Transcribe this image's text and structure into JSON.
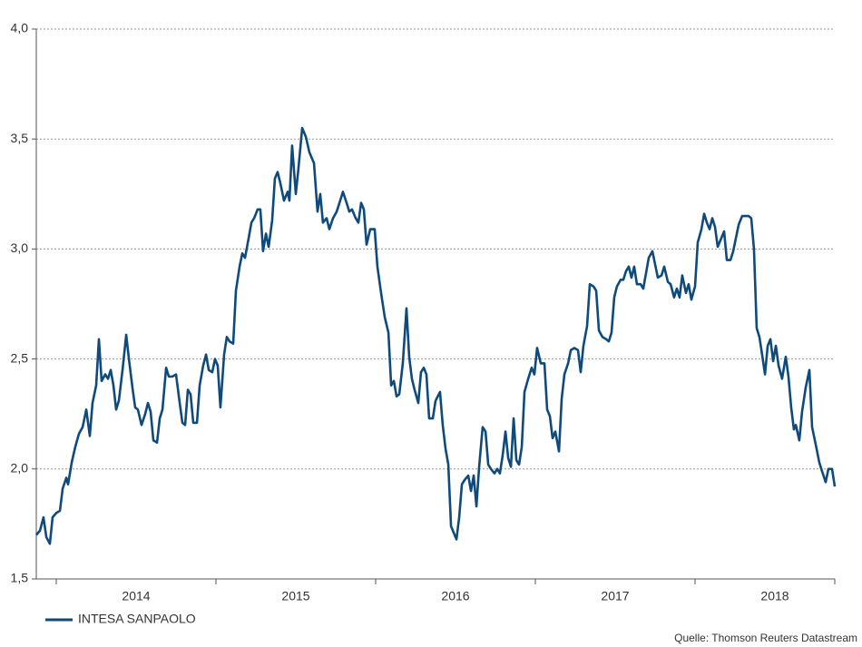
{
  "chart_data": {
    "type": "line",
    "source": "Quelle: Thomson Reuters Datastream",
    "legend": "bottom left",
    "grid": true,
    "xlim": [
      2013.875,
      2018.875
    ],
    "xticks": [
      2014,
      2015,
      2016,
      2017,
      2018
    ],
    "ylim": [
      1.5,
      4.0
    ],
    "yticks": [
      {
        "value": 1.5,
        "label": "1,5"
      },
      {
        "value": 2.0,
        "label": "2,0"
      },
      {
        "value": 2.5,
        "label": "2,5"
      },
      {
        "value": 3.0,
        "label": "3,0"
      },
      {
        "value": 3.5,
        "label": "3,5"
      },
      {
        "value": 4.0,
        "label": "4,0"
      }
    ],
    "x": [
      2013.875,
      2013.898,
      2013.92,
      2013.938,
      2013.96,
      2013.977,
      2014.0,
      2014.023,
      2014.04,
      2014.063,
      2014.074,
      2014.097,
      2014.119,
      2014.142,
      2014.165,
      2014.188,
      2014.21,
      2014.227,
      2014.25,
      2014.267,
      2014.284,
      2014.307,
      2014.324,
      2014.341,
      2014.358,
      2014.375,
      2014.392,
      2014.415,
      2014.438,
      2014.455,
      2014.477,
      2014.494,
      2014.511,
      2014.534,
      2014.557,
      2014.574,
      2014.591,
      2014.608,
      2014.631,
      2014.648,
      2014.665,
      2014.688,
      2014.705,
      2014.727,
      2014.75,
      2014.773,
      2014.79,
      2014.807,
      2014.824,
      2014.841,
      2014.858,
      2014.881,
      2014.898,
      2014.92,
      2014.938,
      2014.955,
      2014.977,
      2014.994,
      2015.011,
      2015.028,
      2015.051,
      2015.068,
      2015.085,
      2015.108,
      2015.125,
      2015.148,
      2015.165,
      2015.182,
      2015.205,
      2015.222,
      2015.239,
      2015.261,
      2015.278,
      2015.295,
      2015.313,
      2015.33,
      2015.352,
      2015.369,
      2015.386,
      2015.403,
      2015.426,
      2015.449,
      2015.46,
      2015.477,
      2015.5,
      2015.517,
      2015.54,
      2015.563,
      2015.585,
      2015.614,
      2015.636,
      2015.653,
      2015.67,
      2015.693,
      2015.71,
      2015.733,
      2015.756,
      2015.778,
      2015.795,
      2015.818,
      2015.835,
      2015.852,
      2015.875,
      2015.892,
      2015.909,
      2015.926,
      2015.943,
      2015.966,
      2015.994,
      2016.011,
      2016.034,
      2016.057,
      2016.08,
      2016.097,
      2016.114,
      2016.131,
      2016.148,
      2016.17,
      2016.193,
      2016.21,
      2016.227,
      2016.244,
      2016.267,
      2016.284,
      2016.301,
      2016.318,
      2016.335,
      2016.358,
      2016.375,
      2016.403,
      2016.42,
      2016.438,
      2016.455,
      2016.472,
      2016.489,
      2016.506,
      2016.523,
      2016.54,
      2016.557,
      2016.58,
      2016.597,
      2016.614,
      2016.631,
      2016.648,
      2016.67,
      2016.688,
      2016.705,
      2016.722,
      2016.744,
      2016.761,
      2016.778,
      2016.795,
      2016.813,
      2016.83,
      2016.847,
      2016.864,
      2016.881,
      2016.898,
      2016.915,
      2016.932,
      2016.955,
      2016.977,
      2016.994,
      2017.011,
      2017.034,
      2017.057,
      2017.074,
      2017.091,
      2017.108,
      2017.125,
      2017.148,
      2017.165,
      2017.182,
      2017.205,
      2017.222,
      2017.244,
      2017.267,
      2017.284,
      2017.301,
      2017.324,
      2017.341,
      2017.364,
      2017.381,
      2017.398,
      2017.42,
      2017.443,
      2017.46,
      2017.477,
      2017.494,
      2017.511,
      2017.534,
      2017.551,
      2017.568,
      2017.585,
      2017.602,
      2017.619,
      2017.636,
      2017.659,
      2017.676,
      2017.693,
      2017.71,
      2017.733,
      2017.75,
      2017.767,
      2017.79,
      2017.807,
      2017.83,
      2017.847,
      2017.869,
      2017.886,
      2017.903,
      2017.92,
      2017.943,
      2017.96,
      2017.977,
      2018.0,
      2018.017,
      2018.04,
      2018.057,
      2018.074,
      2018.091,
      2018.108,
      2018.125,
      2018.142,
      2018.165,
      2018.182,
      2018.199,
      2018.222,
      2018.239,
      2018.256,
      2018.273,
      2018.295,
      2018.313,
      2018.335,
      2018.352,
      2018.369,
      2018.386,
      2018.403,
      2018.42,
      2018.438,
      2018.455,
      2018.472,
      2018.489,
      2018.506,
      2018.523,
      2018.545,
      2018.568,
      2018.585,
      2018.602,
      2018.619,
      2018.631,
      2018.653,
      2018.67,
      2018.693,
      2018.716,
      2018.733,
      2018.756,
      2018.778,
      2018.795,
      2018.818,
      2018.835,
      2018.858,
      2018.875
    ],
    "series": [
      {
        "name": "INTESA SANPAOLO",
        "color": "#0f4a7c",
        "values": [
          1.7,
          1.72,
          1.78,
          1.69,
          1.66,
          1.78,
          1.8,
          1.81,
          1.91,
          1.96,
          1.93,
          2.03,
          2.1,
          2.16,
          2.19,
          2.27,
          2.15,
          2.3,
          2.38,
          2.59,
          2.4,
          2.43,
          2.41,
          2.45,
          2.38,
          2.27,
          2.31,
          2.45,
          2.61,
          2.5,
          2.37,
          2.28,
          2.27,
          2.2,
          2.25,
          2.3,
          2.26,
          2.13,
          2.12,
          2.23,
          2.27,
          2.46,
          2.42,
          2.42,
          2.43,
          2.3,
          2.21,
          2.2,
          2.36,
          2.34,
          2.21,
          2.21,
          2.38,
          2.47,
          2.52,
          2.45,
          2.44,
          2.5,
          2.47,
          2.28,
          2.52,
          2.6,
          2.58,
          2.57,
          2.81,
          2.92,
          2.98,
          2.96,
          3.05,
          3.12,
          3.14,
          3.18,
          3.18,
          2.99,
          3.07,
          3.01,
          3.13,
          3.32,
          3.35,
          3.3,
          3.22,
          3.26,
          3.22,
          3.47,
          3.25,
          3.37,
          3.55,
          3.51,
          3.44,
          3.39,
          3.17,
          3.25,
          3.12,
          3.14,
          3.09,
          3.14,
          3.17,
          3.22,
          3.26,
          3.21,
          3.17,
          3.18,
          3.14,
          3.12,
          3.21,
          3.18,
          3.02,
          3.09,
          3.09,
          2.92,
          2.8,
          2.69,
          2.62,
          2.38,
          2.4,
          2.33,
          2.34,
          2.48,
          2.73,
          2.51,
          2.41,
          2.36,
          2.3,
          2.44,
          2.46,
          2.43,
          2.23,
          2.23,
          2.31,
          2.35,
          2.2,
          2.09,
          2.02,
          1.74,
          1.71,
          1.68,
          1.78,
          1.93,
          1.95,
          1.97,
          1.9,
          1.97,
          1.83,
          2.01,
          2.19,
          2.17,
          2.02,
          2.0,
          1.98,
          2.0,
          1.98,
          2.06,
          2.17,
          2.05,
          2.01,
          2.23,
          2.04,
          2.02,
          2.1,
          2.35,
          2.41,
          2.46,
          2.43,
          2.55,
          2.48,
          2.48,
          2.27,
          2.24,
          2.14,
          2.17,
          2.08,
          2.32,
          2.43,
          2.48,
          2.54,
          2.55,
          2.54,
          2.44,
          2.56,
          2.65,
          2.84,
          2.83,
          2.81,
          2.63,
          2.6,
          2.59,
          2.58,
          2.62,
          2.78,
          2.83,
          2.86,
          2.86,
          2.9,
          2.92,
          2.87,
          2.92,
          2.84,
          2.84,
          2.82,
          2.89,
          2.96,
          2.99,
          2.93,
          2.87,
          2.88,
          2.92,
          2.85,
          2.84,
          2.78,
          2.82,
          2.78,
          2.88,
          2.8,
          2.84,
          2.77,
          2.83,
          3.03,
          3.09,
          3.16,
          3.12,
          3.09,
          3.14,
          3.1,
          3.01,
          3.05,
          3.08,
          2.95,
          2.95,
          2.99,
          3.05,
          3.11,
          3.15,
          3.15,
          3.15,
          3.14,
          3.0,
          2.64,
          2.6,
          2.52,
          2.43,
          2.56,
          2.59,
          2.49,
          2.56,
          2.47,
          2.41,
          2.51,
          2.42,
          2.28,
          2.18,
          2.2,
          2.13,
          2.26,
          2.37,
          2.45,
          2.19,
          2.11,
          2.03,
          1.99,
          1.94,
          2.0,
          2.0,
          1.92
        ]
      }
    ]
  }
}
